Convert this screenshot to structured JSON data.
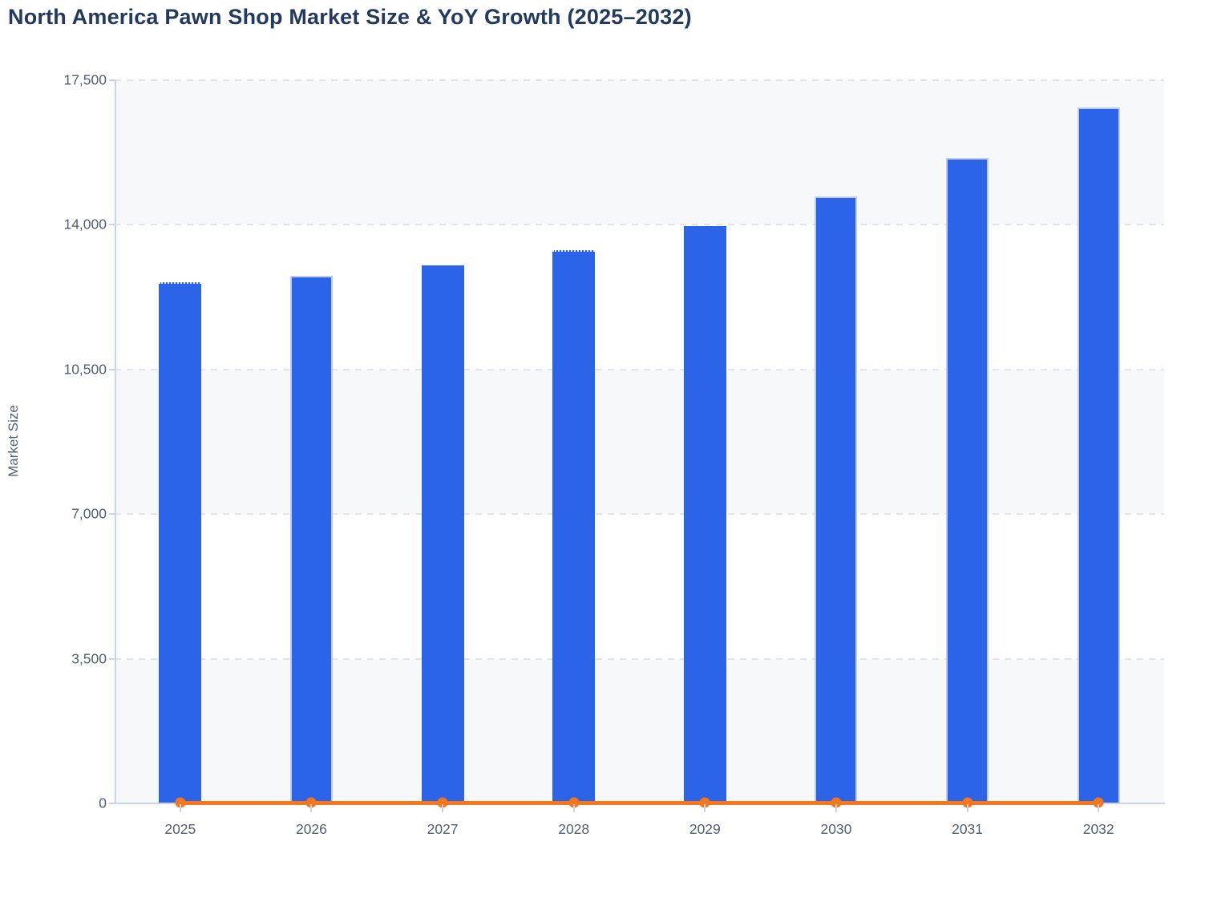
{
  "title": "North America Pawn Shop Market Size & YoY Growth (2025–2032)",
  "chart_data": {
    "type": "bar",
    "title": "North America Pawn Shop Market Size & YoY Growth (2025–2032)",
    "xlabel": "",
    "ylabel": "Market Size",
    "categories": [
      "2025",
      "2026",
      "2027",
      "2028",
      "2029",
      "2030",
      "2031",
      "2032"
    ],
    "series": [
      {
        "name": "Market Size",
        "type": "bar",
        "color": "#2b63e9",
        "values": [
          12620,
          12760,
          13010,
          13390,
          13960,
          14690,
          15620,
          16840
        ]
      },
      {
        "name": "YoY Growth",
        "type": "line",
        "color": "#f5771b",
        "values": [
          0,
          0,
          0,
          0,
          0,
          0,
          0,
          0
        ],
        "renders_at": "baseline (values negligible versus left-axis scale)"
      }
    ],
    "ylim": [
      0,
      17500
    ],
    "yticks": [
      0,
      3500,
      7000,
      10500,
      14000,
      17500
    ],
    "ytick_labels": [
      "0",
      "3,500",
      "7,000",
      "10,500",
      "14,000",
      "17,500"
    ],
    "grid": "dashed horizontal gridlines, alternating shaded horizontal bands",
    "legend": "none"
  },
  "colors": {
    "bar_fill": "#2b63e9",
    "line_stroke": "#f5771b",
    "band_fill": "#f6f8fa",
    "gridline": "#e1e4e9",
    "axis_line": "#c9d3ec",
    "tick_text": "#525f70",
    "title_text": "#233a5c"
  }
}
